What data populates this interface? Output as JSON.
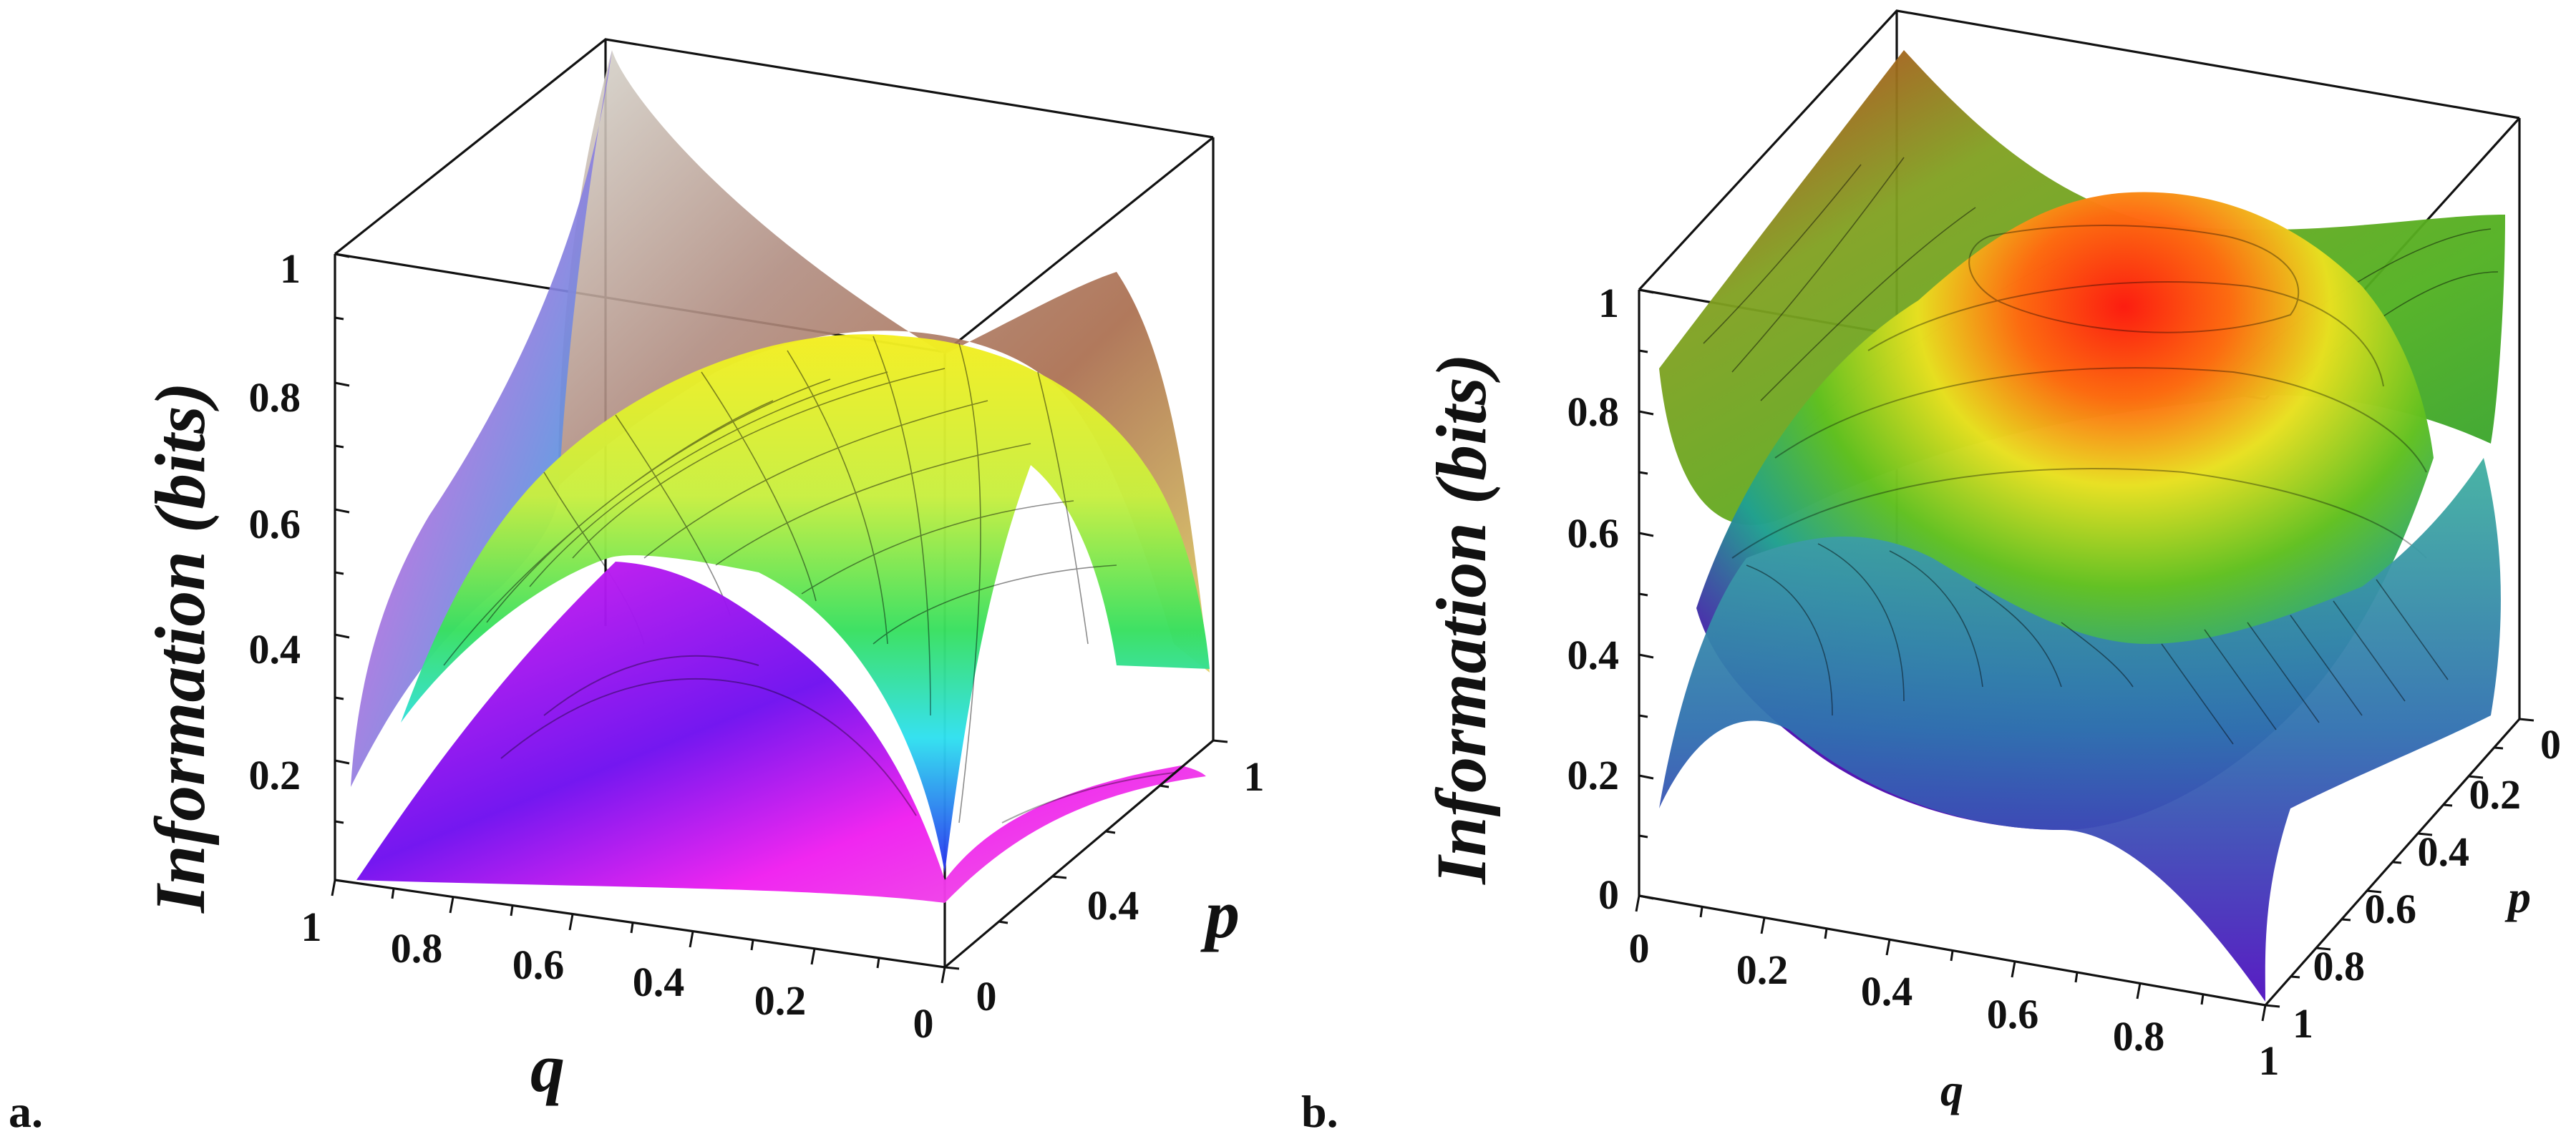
{
  "chart_data": [
    {
      "panel": "a.",
      "type": "surface3d",
      "ylabel": "Information (bits)",
      "xlabel": "q",
      "zlabel": "p",
      "q_ticks": [
        "1",
        "0.8",
        "0.6",
        "0.4",
        "0.2",
        "0"
      ],
      "p_ticks": [
        "0",
        "0.4",
        "1"
      ],
      "i_ticks": [
        "0.2",
        "0.4",
        "0.6",
        "0.8",
        "1"
      ],
      "q_range": [
        0,
        1
      ],
      "p_range": [
        0,
        1
      ],
      "i_range": [
        0,
        1
      ],
      "surfaces": [
        {
          "colormap": "rainbow",
          "peak_value": 1.0
        },
        {
          "colormap": "rainbow",
          "peak_value": 0.79
        },
        {
          "colormap": "blue-magenta",
          "peak_value": 0.45
        }
      ]
    },
    {
      "panel": "b.",
      "type": "surface3d",
      "ylabel": "Information (bits)",
      "xlabel": "q",
      "zlabel": "p",
      "q_ticks": [
        "0",
        "0.2",
        "0.4",
        "0.6",
        "0.8",
        "1"
      ],
      "p_ticks": [
        "0",
        "0.2",
        "0.4",
        "0.6",
        "0.8",
        "1"
      ],
      "i_ticks": [
        "0",
        "0.2",
        "0.4",
        "0.6",
        "0.8",
        "1"
      ],
      "q_range": [
        0,
        1
      ],
      "p_range": [
        0,
        1
      ],
      "i_range": [
        0,
        1
      ],
      "surfaces": [
        {
          "colormap": "rainbow",
          "peak_value": 1.0
        },
        {
          "colormap": "rainbow",
          "peak_value": 0.87
        },
        {
          "colormap": "rainbow",
          "peak_value": 0.75
        }
      ]
    }
  ]
}
